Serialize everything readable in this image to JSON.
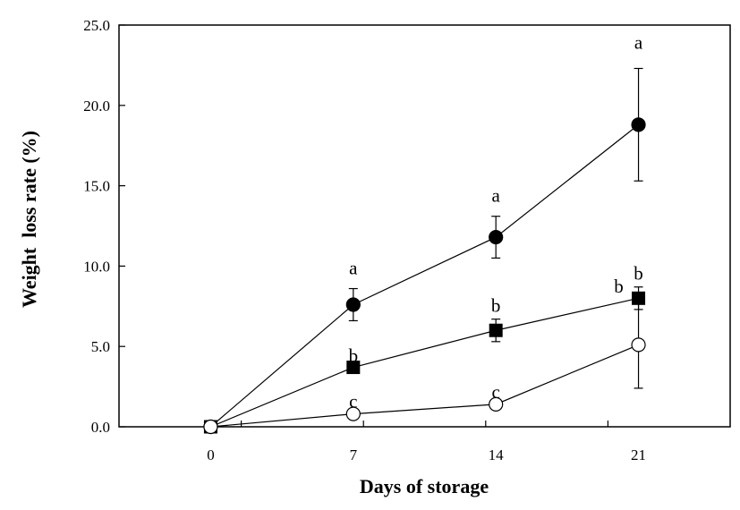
{
  "chart_data": {
    "type": "line",
    "xlabel": "Days of storage",
    "ylabel": "Weight  loss rate (%)",
    "x": [
      0,
      7,
      14,
      21
    ],
    "x_tick_labels": [
      "0",
      "7",
      "14",
      "21"
    ],
    "xlim": [
      -4.5,
      25.5
    ],
    "ylim": [
      0,
      25
    ],
    "y_tick_labels": [
      "0.0",
      "5.0",
      "10.0",
      "15.0",
      "20.0",
      "25.0"
    ],
    "grid": false,
    "legend": "none",
    "series": [
      {
        "marker": "filled-circle",
        "values": [
          0.0,
          7.6,
          11.8,
          18.8
        ],
        "error": [
          0.0,
          1.0,
          1.3,
          3.5
        ],
        "letters": [
          "",
          "a",
          "a",
          "a"
        ]
      },
      {
        "marker": "filled-square",
        "values": [
          0.0,
          3.7,
          6.0,
          8.0
        ],
        "error": [
          0.0,
          0.0,
          0.7,
          0.7
        ],
        "letters": [
          "",
          "b",
          "b",
          "b"
        ]
      },
      {
        "marker": "open-circle",
        "values": [
          0.0,
          0.8,
          1.4,
          5.1
        ],
        "error": [
          0.0,
          0.0,
          0.0,
          2.7
        ],
        "letters": [
          "",
          "c",
          "c",
          "b"
        ]
      }
    ],
    "colors": {
      "line": "#000000",
      "marker_fill_open": "#ffffff",
      "marker_fill_solid": "#000000"
    }
  }
}
